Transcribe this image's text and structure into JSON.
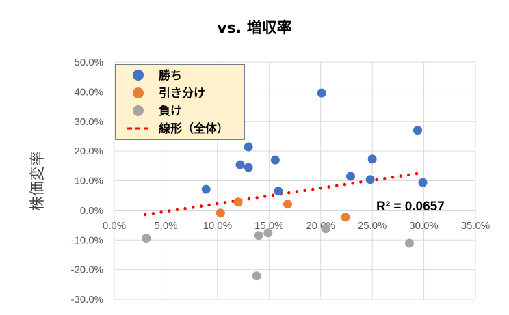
{
  "chart_data": {
    "type": "scatter",
    "title": "vs. 増収率",
    "xlabel": "",
    "ylabel": "株価変率",
    "xlim": [
      0,
      35
    ],
    "ylim": [
      -30,
      50
    ],
    "x_ticks": [
      "0.0%",
      "5.0%",
      "10.0%",
      "15.0%",
      "20.0%",
      "25.0%",
      "30.0%",
      "35.0%"
    ],
    "y_ticks": [
      "50.0%",
      "40.0%",
      "30.0%",
      "20.0%",
      "10.0%",
      "0.0%",
      "-10.0%",
      "-20.0%",
      "-30.0%"
    ],
    "grid": true,
    "legend_position": "top-left",
    "series": [
      {
        "name": "勝ち",
        "color": "#4472C4",
        "points": [
          [
            8.9,
            7.1
          ],
          [
            12.2,
            15.4
          ],
          [
            13.0,
            21.4
          ],
          [
            13.0,
            14.5
          ],
          [
            15.6,
            17.0
          ],
          [
            15.9,
            6.5
          ],
          [
            20.1,
            39.6
          ],
          [
            22.9,
            11.5
          ],
          [
            24.8,
            10.4
          ],
          [
            25.0,
            17.3
          ],
          [
            29.4,
            27.0
          ],
          [
            29.9,
            9.4
          ]
        ]
      },
      {
        "name": "引き分け",
        "color": "#ED7D31",
        "points": [
          [
            10.3,
            -0.9
          ],
          [
            12.0,
            2.8
          ],
          [
            16.8,
            2.1
          ],
          [
            22.4,
            -2.3
          ]
        ]
      },
      {
        "name": "負け",
        "color": "#A5A5A5",
        "points": [
          [
            3.1,
            -9.4
          ],
          [
            14.0,
            -8.5
          ],
          [
            14.9,
            -7.6
          ],
          [
            13.8,
            -22.1
          ],
          [
            20.5,
            -6.2
          ],
          [
            28.6,
            -11.1
          ]
        ]
      }
    ],
    "trendline": {
      "name": "線形（全体）",
      "color": "#FF0000",
      "x_range": [
        3.0,
        29.9
      ],
      "y_range": [
        -1.4,
        12.7
      ],
      "r2_label": "R² = 0.0657"
    }
  }
}
